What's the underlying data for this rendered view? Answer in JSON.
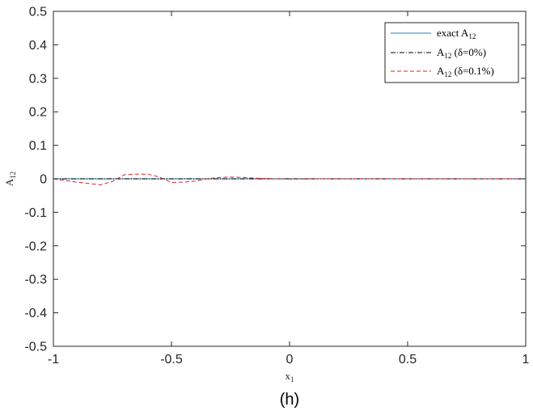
{
  "chart_data": {
    "type": "line",
    "title": "",
    "caption": "(h)",
    "xlabel": {
      "base": "x",
      "sub": "1"
    },
    "ylabel": {
      "base": "A",
      "sub": "12"
    },
    "xlim": [
      -1,
      1
    ],
    "ylim": [
      -0.5,
      0.5
    ],
    "xticks": [
      -1,
      -0.5,
      0,
      0.5,
      1
    ],
    "xtick_labels": [
      "-1",
      "-0.5",
      "0",
      "0.5",
      "1"
    ],
    "yticks": [
      -0.5,
      -0.4,
      -0.3,
      -0.2,
      -0.1,
      0,
      0.1,
      0.2,
      0.3,
      0.4,
      0.5
    ],
    "ytick_labels": [
      "-0.5",
      "-0.4",
      "-0.3",
      "-0.2",
      "-0.1",
      "0",
      "0.1",
      "0.2",
      "0.3",
      "0.4",
      "0.5"
    ],
    "grid": false,
    "legend_position": "top-right",
    "series": [
      {
        "name": {
          "pre": "exact A",
          "sub": "12",
          "post": ""
        },
        "color": "#4a9bc4",
        "style": "solid",
        "x": [
          -1,
          1
        ],
        "y": [
          0,
          0
        ]
      },
      {
        "name": {
          "pre": "A",
          "sub": "12",
          "post": " (δ=0%)"
        },
        "color": "#000000",
        "style": "dashdot",
        "x": [
          -1,
          1
        ],
        "y": [
          0,
          0
        ]
      },
      {
        "name": {
          "pre": "A",
          "sub": "12",
          "post": " (δ=0.1%)"
        },
        "color": "#e0201b",
        "style": "dashed",
        "x": [
          -1,
          -0.9,
          -0.8,
          -0.75,
          -0.7,
          -0.65,
          -0.6,
          -0.55,
          -0.5,
          -0.45,
          -0.4,
          -0.35,
          -0.3,
          -0.25,
          -0.2,
          -0.15,
          -0.1,
          -0.05,
          0,
          0.1,
          0.2,
          0.3,
          0.5,
          0.7,
          1
        ],
        "y": [
          0,
          -0.01,
          -0.018,
          -0.008,
          0.012,
          0.014,
          0.014,
          0.005,
          -0.011,
          -0.01,
          -0.007,
          0,
          0.004,
          0.005,
          0.004,
          0.002,
          0.001,
          0,
          -0.001,
          0,
          0,
          0,
          0,
          0,
          0
        ]
      }
    ]
  }
}
